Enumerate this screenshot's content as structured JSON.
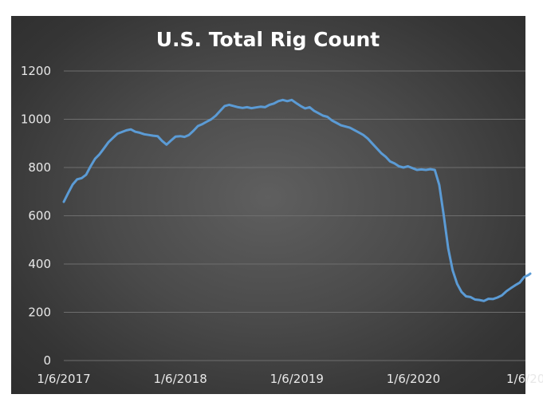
{
  "chart_data": {
    "type": "line",
    "title": "U.S. Total Rig Count",
    "xlabel": "",
    "ylabel": "",
    "ylim": [
      0,
      1200
    ],
    "yticks": [
      "0",
      "200",
      "400",
      "600",
      "800",
      "1000",
      "1200"
    ],
    "xticks": [
      "1/6/2017",
      "1/6/2018",
      "1/6/2019",
      "1/6/2020",
      "1/6/20"
    ],
    "xlim": [
      "2017-01-06",
      "2021-01-06"
    ],
    "grid": true,
    "legend": "none",
    "series": [
      {
        "color": "#5b9bd5",
        "points": [
          [
            "2017-01-06",
            658
          ],
          [
            "2017-01-20",
            695
          ],
          [
            "2017-02-03",
            730
          ],
          [
            "2017-02-17",
            751
          ],
          [
            "2017-03-03",
            756
          ],
          [
            "2017-03-17",
            770
          ],
          [
            "2017-03-31",
            805
          ],
          [
            "2017-04-14",
            836
          ],
          [
            "2017-04-28",
            855
          ],
          [
            "2017-05-12",
            880
          ],
          [
            "2017-05-26",
            905
          ],
          [
            "2017-06-09",
            923
          ],
          [
            "2017-06-23",
            940
          ],
          [
            "2017-07-07",
            947
          ],
          [
            "2017-07-21",
            954
          ],
          [
            "2017-08-04",
            958
          ],
          [
            "2017-08-18",
            948
          ],
          [
            "2017-09-01",
            944
          ],
          [
            "2017-09-15",
            938
          ],
          [
            "2017-09-29",
            935
          ],
          [
            "2017-10-13",
            932
          ],
          [
            "2017-10-27",
            930
          ],
          [
            "2017-11-10",
            910
          ],
          [
            "2017-11-24",
            895
          ],
          [
            "2017-12-08",
            912
          ],
          [
            "2017-12-22",
            928
          ],
          [
            "2018-01-06",
            930
          ],
          [
            "2018-01-19",
            927
          ],
          [
            "2018-02-02",
            935
          ],
          [
            "2018-02-16",
            952
          ],
          [
            "2018-03-02",
            972
          ],
          [
            "2018-03-16",
            980
          ],
          [
            "2018-03-30",
            990
          ],
          [
            "2018-04-13",
            1000
          ],
          [
            "2018-04-27",
            1015
          ],
          [
            "2018-05-11",
            1035
          ],
          [
            "2018-05-25",
            1055
          ],
          [
            "2018-06-08",
            1060
          ],
          [
            "2018-06-22",
            1055
          ],
          [
            "2018-07-06",
            1050
          ],
          [
            "2018-07-20",
            1047
          ],
          [
            "2018-08-03",
            1050
          ],
          [
            "2018-08-17",
            1046
          ],
          [
            "2018-08-31",
            1049
          ],
          [
            "2018-09-14",
            1052
          ],
          [
            "2018-09-28",
            1050
          ],
          [
            "2018-10-12",
            1060
          ],
          [
            "2018-10-26",
            1065
          ],
          [
            "2018-11-09",
            1075
          ],
          [
            "2018-11-23",
            1080
          ],
          [
            "2018-12-07",
            1075
          ],
          [
            "2018-12-21",
            1080
          ],
          [
            "2019-01-06",
            1065
          ],
          [
            "2019-01-18",
            1055
          ],
          [
            "2019-02-01",
            1045
          ],
          [
            "2019-02-15",
            1050
          ],
          [
            "2019-03-01",
            1035
          ],
          [
            "2019-03-15",
            1025
          ],
          [
            "2019-03-29",
            1015
          ],
          [
            "2019-04-12",
            1010
          ],
          [
            "2019-04-26",
            995
          ],
          [
            "2019-05-10",
            985
          ],
          [
            "2019-05-24",
            975
          ],
          [
            "2019-06-07",
            970
          ],
          [
            "2019-06-21",
            965
          ],
          [
            "2019-07-05",
            955
          ],
          [
            "2019-07-19",
            945
          ],
          [
            "2019-08-02",
            935
          ],
          [
            "2019-08-16",
            920
          ],
          [
            "2019-08-30",
            900
          ],
          [
            "2019-09-13",
            880
          ],
          [
            "2019-09-27",
            860
          ],
          [
            "2019-10-11",
            845
          ],
          [
            "2019-10-25",
            825
          ],
          [
            "2019-11-08",
            817
          ],
          [
            "2019-11-22",
            805
          ],
          [
            "2019-12-06",
            800
          ],
          [
            "2019-12-20",
            805
          ],
          [
            "2020-01-06",
            796
          ],
          [
            "2020-01-17",
            790
          ],
          [
            "2020-01-31",
            792
          ],
          [
            "2020-02-14",
            790
          ],
          [
            "2020-02-28",
            793
          ],
          [
            "2020-03-13",
            790
          ],
          [
            "2020-03-27",
            728
          ],
          [
            "2020-04-10",
            602
          ],
          [
            "2020-04-24",
            465
          ],
          [
            "2020-05-08",
            374
          ],
          [
            "2020-05-22",
            318
          ],
          [
            "2020-06-05",
            284
          ],
          [
            "2020-06-19",
            266
          ],
          [
            "2020-07-03",
            263
          ],
          [
            "2020-07-17",
            253
          ],
          [
            "2020-07-31",
            251
          ],
          [
            "2020-08-14",
            247
          ],
          [
            "2020-08-28",
            256
          ],
          [
            "2020-09-11",
            255
          ],
          [
            "2020-09-25",
            261
          ],
          [
            "2020-10-09",
            270
          ],
          [
            "2020-10-23",
            287
          ],
          [
            "2020-11-06",
            300
          ],
          [
            "2020-11-20",
            312
          ],
          [
            "2020-12-04",
            323
          ],
          [
            "2020-12-18",
            346
          ],
          [
            "2021-01-01",
            355
          ],
          [
            "2021-01-06",
            360
          ]
        ]
      }
    ]
  }
}
